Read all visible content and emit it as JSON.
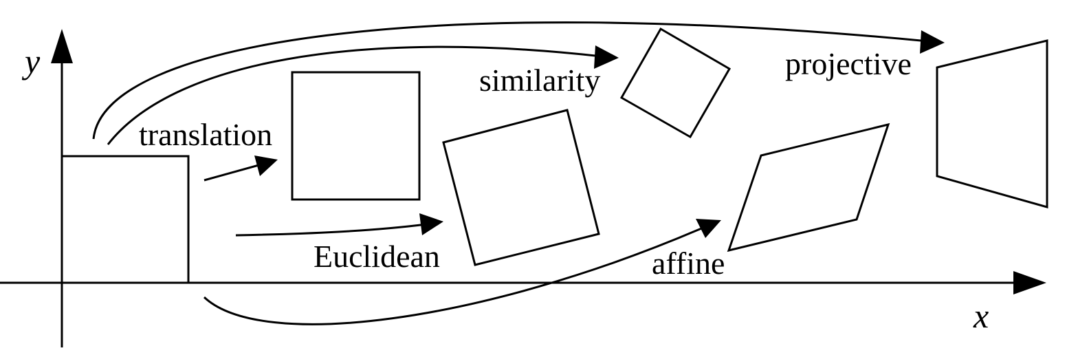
{
  "axes": {
    "x_label": "x",
    "y_label": "y"
  },
  "transforms": [
    {
      "key": "translation",
      "label": "translation"
    },
    {
      "key": "euclidean",
      "label": "Euclidean"
    },
    {
      "key": "similarity",
      "label": "similarity"
    },
    {
      "key": "affine",
      "label": "affine"
    },
    {
      "key": "projective",
      "label": "projective"
    }
  ]
}
